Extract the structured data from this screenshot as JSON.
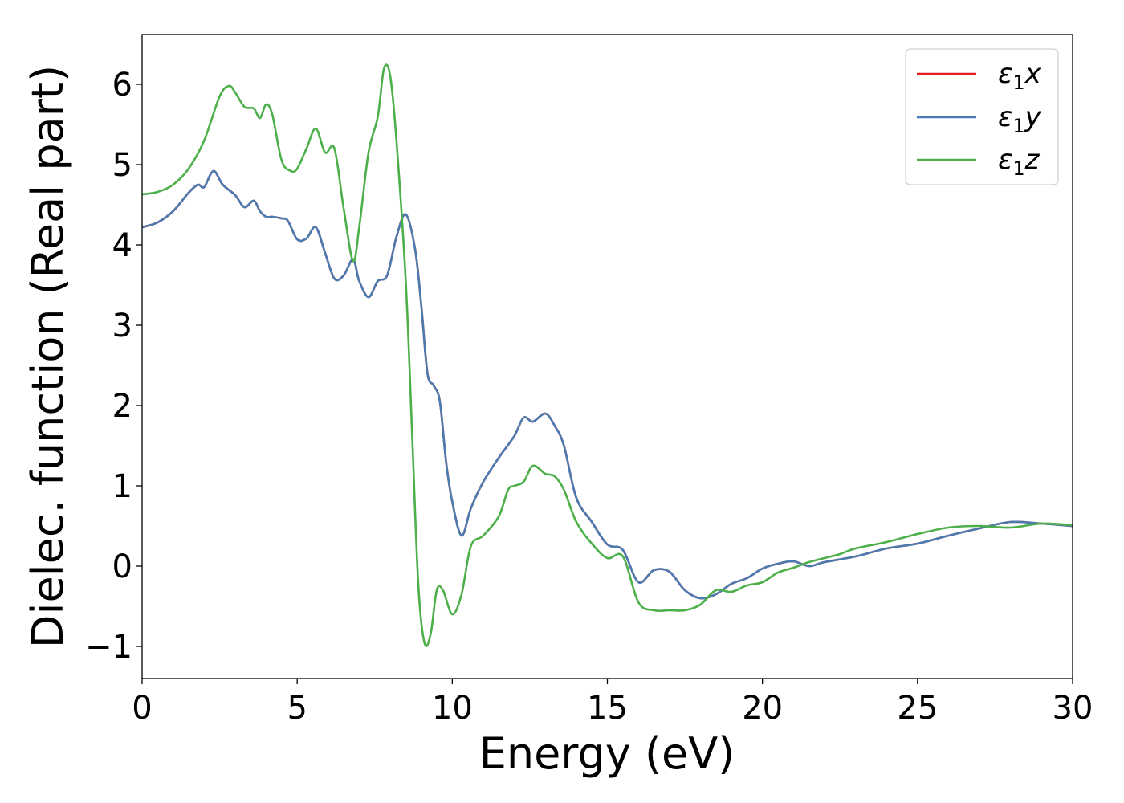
{
  "chart_data": {
    "type": "line",
    "xlabel": "Energy (eV)",
    "ylabel": "Dielec. function (Real part)",
    "xlim": [
      0,
      30
    ],
    "ylim": [
      -1.4,
      6.62
    ],
    "xticks": [
      0,
      5,
      10,
      15,
      20,
      25,
      30
    ],
    "xtick_labels": [
      "0",
      "5",
      "10",
      "15",
      "20",
      "25",
      "30"
    ],
    "yticks": [
      -1,
      0,
      1,
      2,
      3,
      4,
      5,
      6
    ],
    "ytick_labels": [
      "−1",
      "0",
      "1",
      "2",
      "3",
      "4",
      "5",
      "6"
    ],
    "grid": false,
    "legend_position": "top-right",
    "series": [
      {
        "name": "ε1x",
        "legend": {
          "sym": "ε",
          "sub": "1",
          "var": "x"
        },
        "color": "#e41a1c",
        "x": [
          0,
          0.5,
          1.0,
          1.5,
          1.8,
          2.0,
          2.3,
          2.6,
          3.0,
          3.3,
          3.6,
          3.8,
          4.0,
          4.2,
          4.5,
          4.7,
          5.0,
          5.3,
          5.6,
          5.9,
          6.2,
          6.5,
          6.8,
          7.0,
          7.3,
          7.6,
          7.9,
          8.2,
          8.5,
          8.8,
          9.0,
          9.2,
          9.4,
          9.6,
          9.8,
          10.0,
          10.3,
          10.6,
          11.0,
          11.5,
          12.0,
          12.3,
          12.6,
          13.0,
          13.3,
          13.6,
          14.0,
          14.5,
          15.0,
          15.5,
          16.0,
          16.5,
          17.0,
          17.5,
          18.0,
          18.5,
          19.0,
          19.5,
          20.0,
          20.5,
          21.0,
          21.5,
          22.0,
          23.0,
          24.0,
          25.0,
          26.0,
          27.0,
          28.0,
          29.0,
          30.0
        ],
        "y": [
          4.22,
          4.28,
          4.42,
          4.65,
          4.75,
          4.72,
          4.92,
          4.75,
          4.62,
          4.47,
          4.55,
          4.42,
          4.35,
          4.35,
          4.33,
          4.3,
          4.07,
          4.08,
          4.22,
          3.9,
          3.58,
          3.62,
          3.82,
          3.55,
          3.35,
          3.55,
          3.62,
          4.1,
          4.38,
          3.95,
          3.25,
          2.4,
          2.25,
          2.05,
          1.3,
          0.8,
          0.38,
          0.72,
          1.05,
          1.35,
          1.62,
          1.85,
          1.8,
          1.9,
          1.75,
          1.5,
          0.85,
          0.55,
          0.27,
          0.2,
          -0.2,
          -0.05,
          -0.07,
          -0.3,
          -0.4,
          -0.35,
          -0.22,
          -0.15,
          -0.03,
          0.03,
          0.06,
          0.0,
          0.05,
          0.12,
          0.22,
          0.28,
          0.38,
          0.47,
          0.55,
          0.53,
          0.5
        ]
      },
      {
        "name": "ε1y",
        "legend": {
          "sym": "ε",
          "sub": "1",
          "var": "y"
        },
        "color": "#4a7bb0",
        "x": [
          0,
          0.5,
          1.0,
          1.5,
          1.8,
          2.0,
          2.3,
          2.6,
          3.0,
          3.3,
          3.6,
          3.8,
          4.0,
          4.2,
          4.5,
          4.7,
          5.0,
          5.3,
          5.6,
          5.9,
          6.2,
          6.5,
          6.8,
          7.0,
          7.3,
          7.6,
          7.9,
          8.2,
          8.5,
          8.8,
          9.0,
          9.2,
          9.4,
          9.6,
          9.8,
          10.0,
          10.3,
          10.6,
          11.0,
          11.5,
          12.0,
          12.3,
          12.6,
          13.0,
          13.3,
          13.6,
          14.0,
          14.5,
          15.0,
          15.5,
          16.0,
          16.5,
          17.0,
          17.5,
          18.0,
          18.5,
          19.0,
          19.5,
          20.0,
          20.5,
          21.0,
          21.5,
          22.0,
          23.0,
          24.0,
          25.0,
          26.0,
          27.0,
          28.0,
          29.0,
          30.0
        ],
        "y": [
          4.22,
          4.28,
          4.42,
          4.65,
          4.75,
          4.72,
          4.92,
          4.75,
          4.62,
          4.47,
          4.55,
          4.42,
          4.35,
          4.35,
          4.33,
          4.3,
          4.07,
          4.08,
          4.22,
          3.9,
          3.58,
          3.62,
          3.82,
          3.55,
          3.35,
          3.55,
          3.62,
          4.1,
          4.38,
          3.95,
          3.25,
          2.4,
          2.25,
          2.05,
          1.3,
          0.8,
          0.38,
          0.72,
          1.05,
          1.35,
          1.62,
          1.85,
          1.8,
          1.9,
          1.75,
          1.5,
          0.85,
          0.55,
          0.27,
          0.2,
          -0.2,
          -0.05,
          -0.07,
          -0.3,
          -0.4,
          -0.35,
          -0.22,
          -0.15,
          -0.03,
          0.03,
          0.06,
          0.0,
          0.05,
          0.12,
          0.22,
          0.28,
          0.38,
          0.47,
          0.55,
          0.53,
          0.5
        ]
      },
      {
        "name": "ε1z",
        "legend": {
          "sym": "ε",
          "sub": "1",
          "var": "z"
        },
        "color": "#4daf4a",
        "x": [
          0,
          0.5,
          1.0,
          1.5,
          2.0,
          2.5,
          2.8,
          3.0,
          3.3,
          3.6,
          3.8,
          4.0,
          4.2,
          4.5,
          4.8,
          5.0,
          5.3,
          5.6,
          5.9,
          6.2,
          6.5,
          6.8,
          7.0,
          7.3,
          7.6,
          7.8,
          8.0,
          8.2,
          8.5,
          8.7,
          8.9,
          9.1,
          9.3,
          9.5,
          9.7,
          10.0,
          10.3,
          10.6,
          11.0,
          11.5,
          11.8,
          12.0,
          12.3,
          12.6,
          13.0,
          13.3,
          13.6,
          14.0,
          14.5,
          15.0,
          15.5,
          16.0,
          16.5,
          17.0,
          17.5,
          18.0,
          18.5,
          19.0,
          19.5,
          20.0,
          20.5,
          21.0,
          21.5,
          22.0,
          22.5,
          23.0,
          24.0,
          25.0,
          26.0,
          27.0,
          28.0,
          29.0,
          30.0
        ],
        "y": [
          4.63,
          4.66,
          4.75,
          4.95,
          5.3,
          5.85,
          5.98,
          5.9,
          5.72,
          5.7,
          5.58,
          5.75,
          5.62,
          5.05,
          4.92,
          4.95,
          5.2,
          5.45,
          5.15,
          5.2,
          4.45,
          3.8,
          4.22,
          5.15,
          5.6,
          6.2,
          6.1,
          5.3,
          3.55,
          1.7,
          -0.2,
          -0.95,
          -0.85,
          -0.3,
          -0.3,
          -0.6,
          -0.35,
          0.25,
          0.38,
          0.62,
          0.95,
          1.0,
          1.05,
          1.25,
          1.15,
          1.12,
          0.95,
          0.55,
          0.28,
          0.1,
          0.12,
          -0.45,
          -0.55,
          -0.55,
          -0.55,
          -0.48,
          -0.3,
          -0.32,
          -0.24,
          -0.2,
          -0.08,
          -0.02,
          0.05,
          0.1,
          0.15,
          0.22,
          0.3,
          0.4,
          0.48,
          0.5,
          0.48,
          0.53,
          0.51
        ]
      }
    ]
  }
}
